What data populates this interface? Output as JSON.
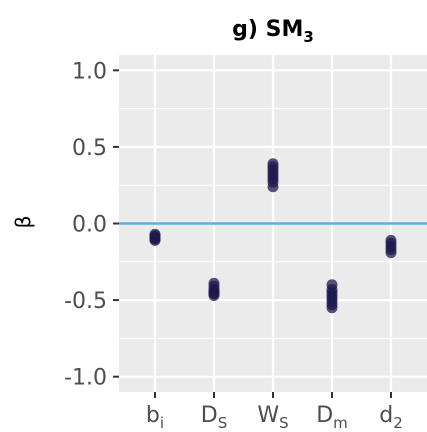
{
  "title": {
    "prefix": "g) SM",
    "subscript": "3"
  },
  "chart_data": {
    "type": "scatter",
    "title": "g) SM3",
    "xlabel": "",
    "ylabel": "β",
    "ylim": [
      -1.1,
      1.1
    ],
    "yticks": [
      1.0,
      0.5,
      0.0,
      -0.5,
      -1.0
    ],
    "ytick_labels": [
      "1.0",
      "0.5",
      "0.0",
      "-0.5",
      "-1.0"
    ],
    "categories": [
      {
        "base": "b",
        "sub": "i"
      },
      {
        "base": "D",
        "sub": "S"
      },
      {
        "base": "W",
        "sub": "S"
      },
      {
        "base": "D",
        "sub": "m"
      },
      {
        "base": "d",
        "sub": "2"
      }
    ],
    "points": [
      [
        -0.07,
        -0.08,
        -0.09,
        -0.1,
        -0.1,
        -0.11
      ],
      [
        -0.39,
        -0.41,
        -0.43,
        -0.44,
        -0.45,
        -0.46,
        -0.47
      ],
      [
        0.39,
        0.37,
        0.35,
        0.33,
        0.31,
        0.29,
        0.27,
        0.24
      ],
      [
        -0.4,
        -0.43,
        -0.45,
        -0.47,
        -0.49,
        -0.51,
        -0.53,
        -0.55
      ],
      [
        -0.11,
        -0.13,
        -0.15,
        -0.17,
        -0.19
      ]
    ],
    "reference_line": {
      "y": 0.0,
      "color": "#5aade3"
    },
    "point_color": "#1f1a4d",
    "panel_background": "#ebebeb",
    "grid": true,
    "legend": "none"
  }
}
